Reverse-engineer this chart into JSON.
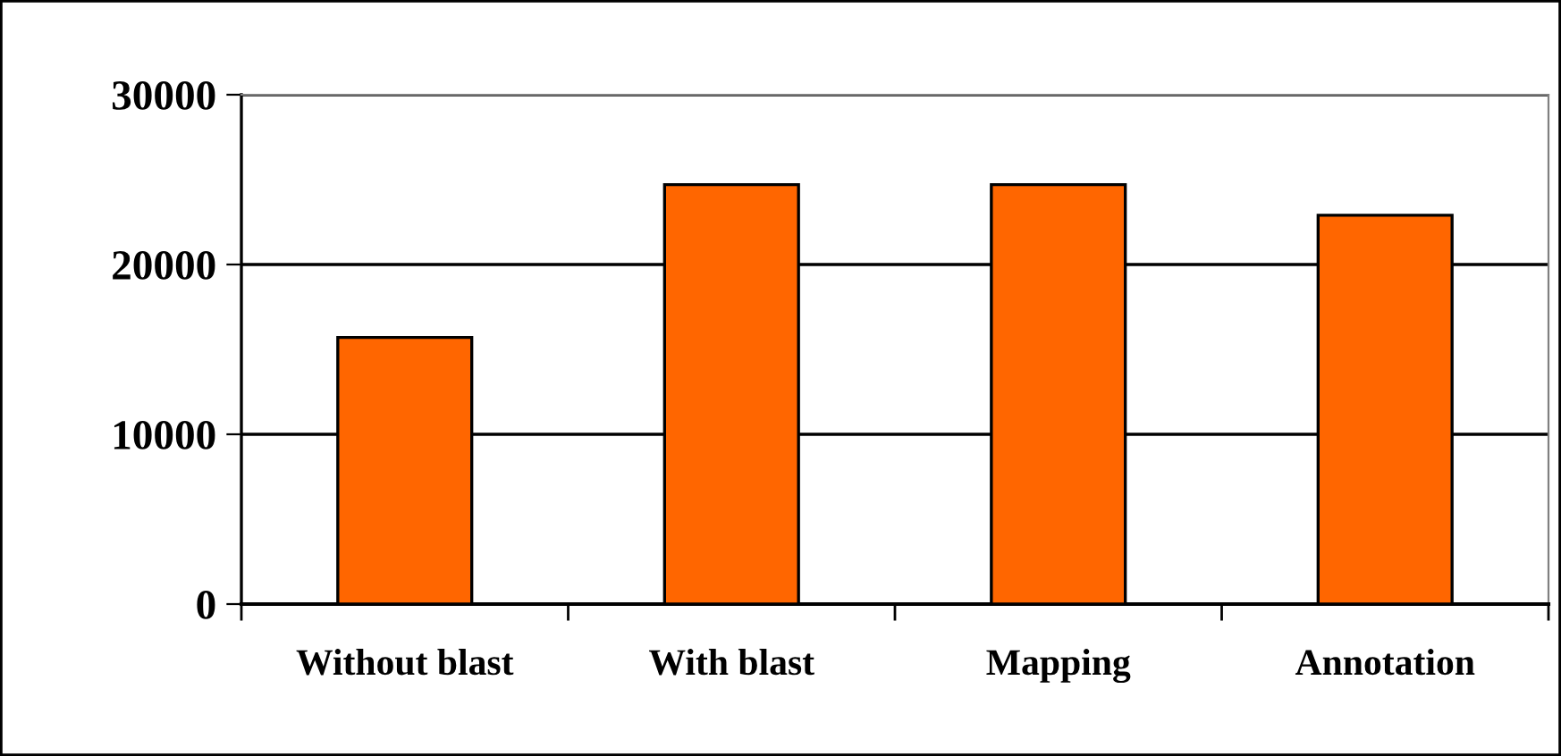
{
  "chart_data": {
    "type": "bar",
    "categories": [
      "Without blast",
      "With blast",
      "Mapping",
      "Annotation"
    ],
    "values": [
      15700,
      24700,
      24700,
      22900
    ],
    "color": "#ff6600",
    "ylim": [
      0,
      30000
    ],
    "yticks": [
      0,
      10000,
      20000,
      30000
    ],
    "grid": "y",
    "legend": false
  }
}
